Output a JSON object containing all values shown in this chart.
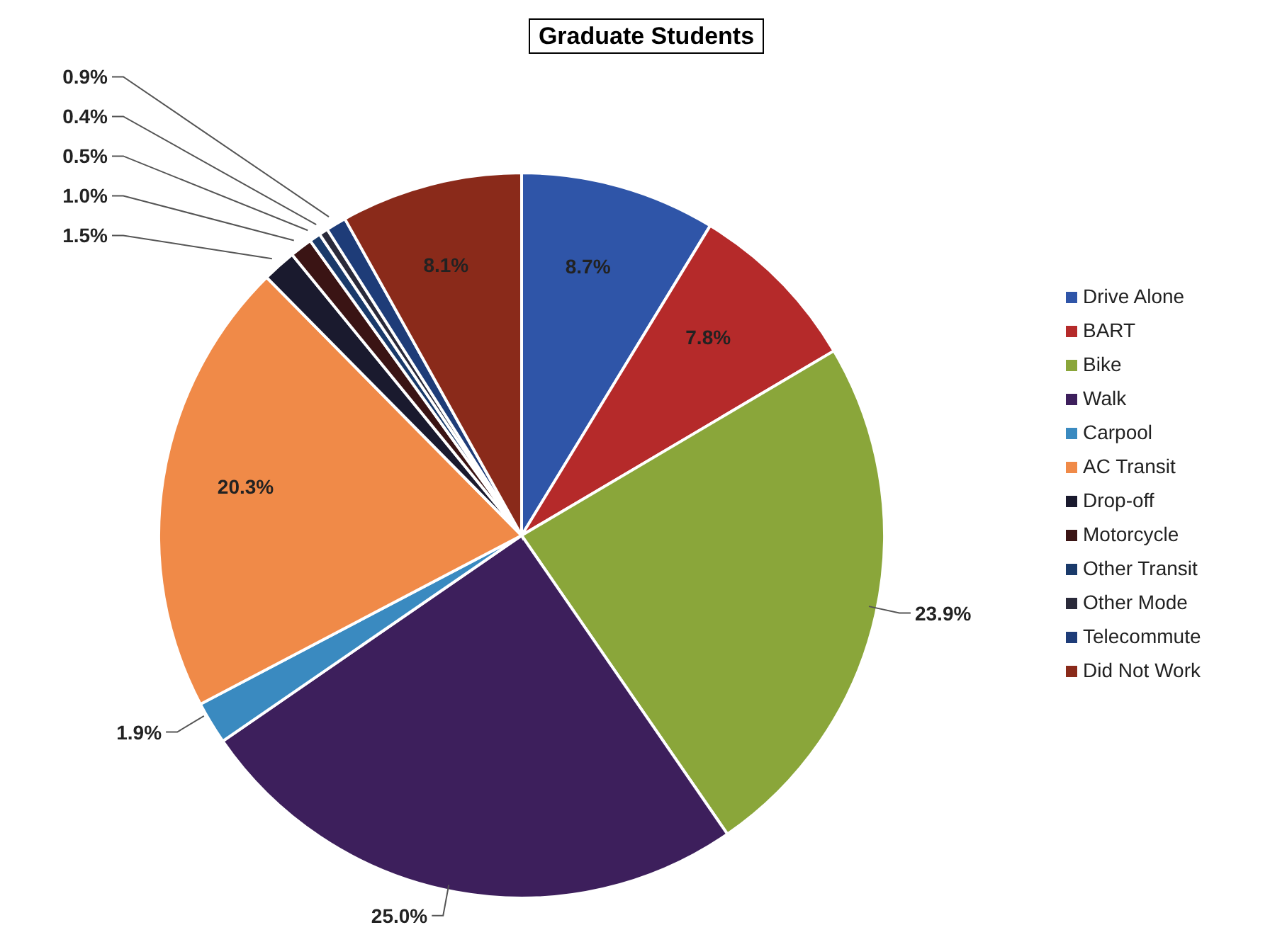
{
  "chart_data": {
    "type": "pie",
    "title": "Graduate Students",
    "categories": [
      "Drive Alone",
      "BART",
      "Bike",
      "Walk",
      "Carpool",
      "AC Transit",
      "Drop-off",
      "Motorcycle",
      "Other Transit",
      "Other Mode",
      "Telecommute",
      "Did Not Work"
    ],
    "values": [
      8.7,
      7.8,
      23.9,
      25.0,
      1.9,
      20.3,
      1.5,
      1.0,
      0.5,
      0.4,
      0.9,
      8.1
    ],
    "colors": [
      "#2f55a8",
      "#b52a2a",
      "#8aa63a",
      "#3d1f5c",
      "#3a8ac0",
      "#f08a48",
      "#1a1a2e",
      "#3a1414",
      "#1a3a6a",
      "#2a2a3a",
      "#1e3c78",
      "#8a2a1a"
    ],
    "value_labels": [
      "8.7%",
      "7.8%",
      "23.9%",
      "25.0%",
      "1.9%",
      "20.3%",
      "1.5%",
      "1.0%",
      "0.5%",
      "0.4%",
      "0.9%",
      "8.1%"
    ],
    "legend": "right"
  }
}
